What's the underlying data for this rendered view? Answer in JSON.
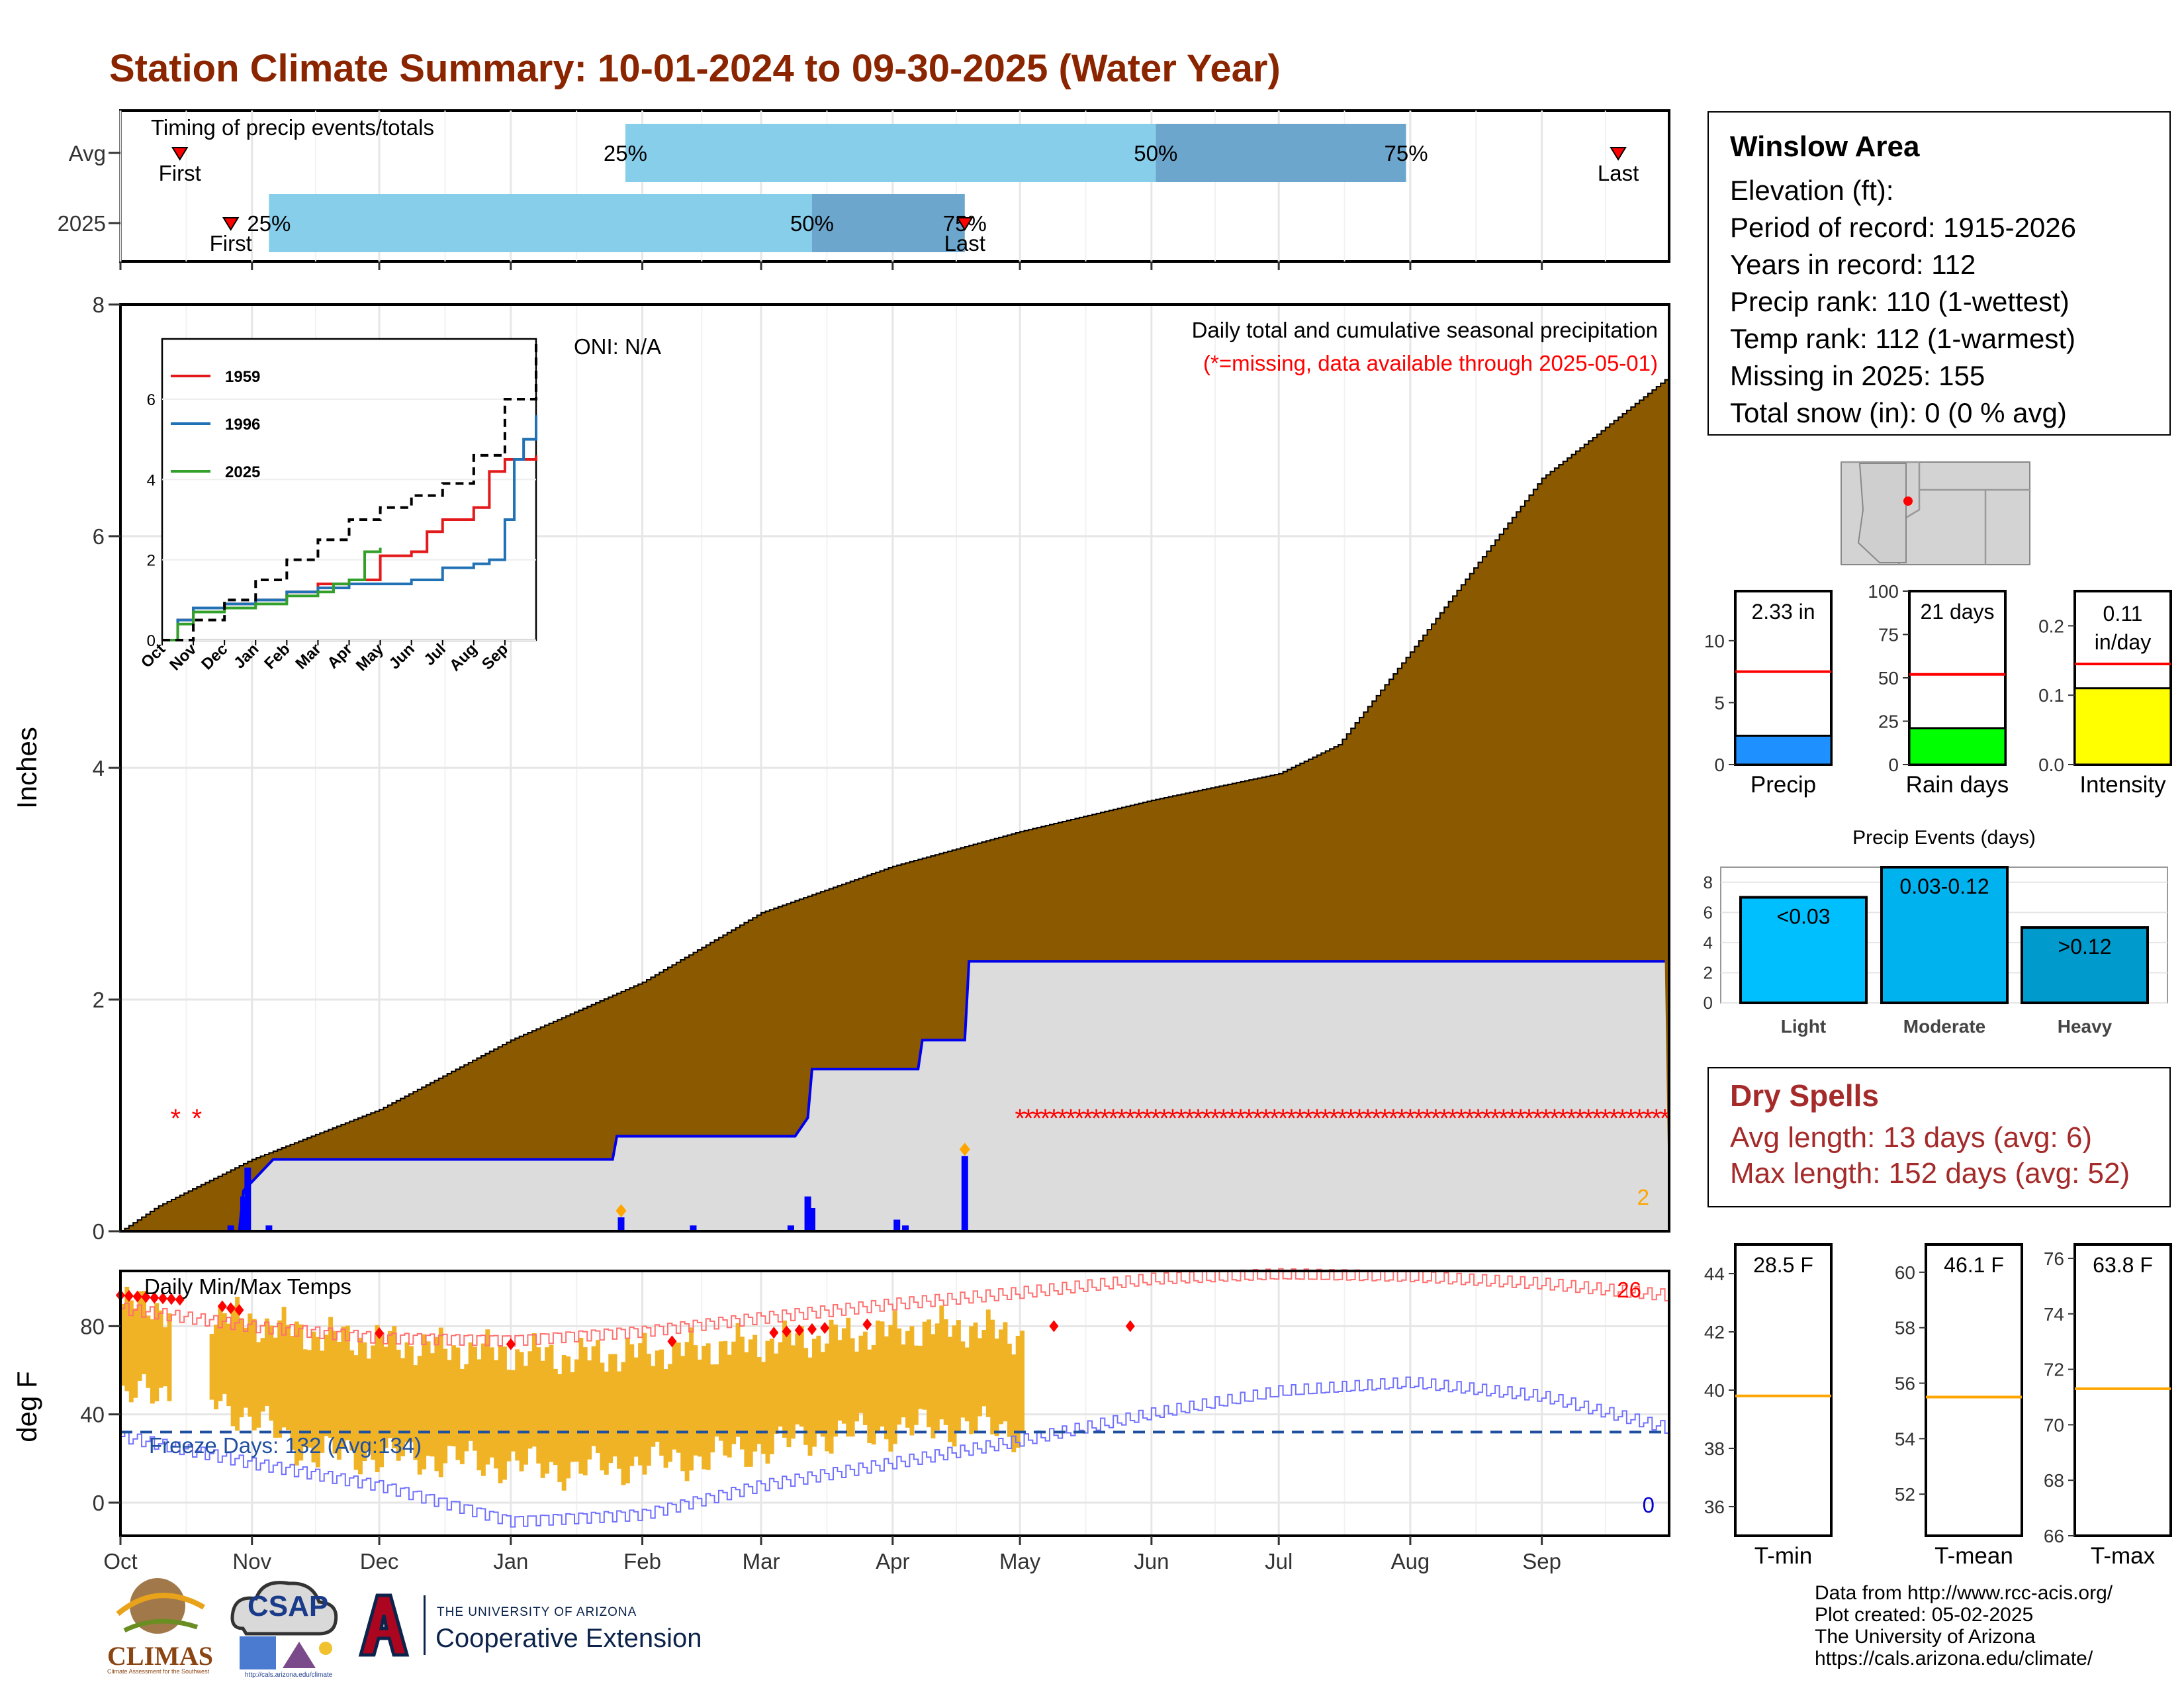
{
  "header": {
    "title": "Station Climate Summary: 10-01-2024 to 09-30-2025 (Water Year)"
  },
  "station": {
    "name": "Winslow Area",
    "elevation": "Elevation (ft):",
    "period": "Period of record: 1915-2026",
    "years": "Years in record: 112",
    "precip_rank": "Precip rank: 110 (1-wettest)",
    "temp_rank": "Temp rank: 112 (1-warmest)",
    "missing": "Missing in 2025: 155",
    "snow": "Total snow (in): 0 (0 % avg)"
  },
  "dry_spells": {
    "title": "Dry Spells",
    "avg": "Avg length: 13 days (avg: 6)",
    "max": "Max length: 152 days (avg: 52)"
  },
  "credits": {
    "line1": "Data from http://www.rcc-acis.org/",
    "line2": "Plot created: 05-02-2025",
    "line3": "The University of Arizona",
    "line4": "https://cals.arizona.edu/climate/"
  },
  "logos": {
    "climas": "CLIMAS",
    "climas_sub": "Climate Assessment for the Southwest",
    "csap": "CSAP",
    "csap_url": "http://cals.arizona.edu/climate",
    "ua_small": "THE UNIVERSITY OF ARIZONA",
    "ua_big": "Cooperative Extension"
  },
  "colors": {
    "title": "#8b2500",
    "cum_fill": "#8b5a00",
    "avg_fill": "#dcdcdc",
    "avg_line": "#0000ee",
    "timing_light": "#87ceeb",
    "timing_dark": "#6ca6cd",
    "temp_bar": "#f0b326",
    "tmax_norm": "#ff7070",
    "tmin_norm": "#7070ff",
    "freeze": "#1f4f9f",
    "missing": "#ff0000"
  },
  "chart_data": [
    {
      "id": "timing",
      "type": "bar",
      "title": "Timing of precip events/totals",
      "rows": [
        {
          "label": "Avg",
          "first": "Oct 15",
          "p25": "Jan 28",
          "p50": "Jun 2",
          "p75": "Jul 31",
          "last": "Sep 19",
          "first_label": "First",
          "last_label": "Last",
          "pct_labels": [
            "25%",
            "50%",
            "75%"
          ]
        },
        {
          "label": "2025",
          "first": "Oct 27",
          "p25": "Nov 5",
          "p50": "Mar 13",
          "p75": "Apr 18",
          "last": "Apr 18",
          "first_label": "First",
          "last_label": "Last",
          "pct_labels": [
            "25%",
            "50%",
            "75%"
          ]
        }
      ]
    },
    {
      "id": "precip",
      "type": "area",
      "title": "Daily total and cumulative seasonal precipitation",
      "subtitle": "(*=missing, data available through 2025-05-01)",
      "annotation": "ONI: N/A",
      "corner_value": "2",
      "ylabel": "Inches",
      "ylim": [
        0,
        8
      ],
      "yticks": [
        "0",
        "2",
        "4",
        "6",
        "8"
      ],
      "avg_cumulative": {
        "x": [
          "Oct 1",
          "Oct 10",
          "Nov 1",
          "Dec 1",
          "Jan 1",
          "Feb 1",
          "Mar 1",
          "Apr 1",
          "May 1",
          "Jun 1",
          "Jul 1",
          "Jul 15",
          "Aug 1",
          "Sep 1",
          "Sep 30"
        ],
        "y": [
          0,
          0.22,
          0.62,
          1.05,
          1.65,
          2.15,
          2.75,
          3.15,
          3.45,
          3.72,
          3.95,
          4.2,
          5.0,
          6.5,
          7.35
        ]
      },
      "obs_cumulative": {
        "x": [
          "Oct 1",
          "Oct 29",
          "Oct 30",
          "Nov 6",
          "Jan 25",
          "Jan 26",
          "Mar 9",
          "Mar 12",
          "Mar 13",
          "Apr 7",
          "Apr 8",
          "Apr 18",
          "Apr 19",
          "May 1",
          "Sep 30"
        ],
        "y": [
          0,
          0,
          0.35,
          0.62,
          0.62,
          0.82,
          0.82,
          0.98,
          1.4,
          1.4,
          1.65,
          1.65,
          2.33,
          2.33,
          2.33
        ]
      },
      "daily": {
        "x": [
          "Oct 27",
          "Oct 30",
          "Oct 31",
          "Nov 5",
          "Jan 27",
          "Feb 13",
          "Mar 8",
          "Mar 12",
          "Mar 13",
          "Apr 2",
          "Apr 4",
          "Apr 18"
        ],
        "y": [
          0.05,
          0.3,
          0.55,
          0.05,
          0.12,
          0.05,
          0.05,
          0.3,
          0.2,
          0.1,
          0.05,
          0.65
        ]
      },
      "flagged_days": [
        "Jan 27",
        "Apr 18"
      ],
      "missing_days": [
        "Oct 14",
        "Oct 19",
        "May 1 to Sep 30"
      ],
      "inset": {
        "type": "line",
        "yticks": [
          "0",
          "2",
          "4",
          "6"
        ],
        "months": [
          "Oct",
          "Nov",
          "Dec",
          "Jan",
          "Feb",
          "Mar",
          "Apr",
          "May",
          "Jun",
          "Jul",
          "Aug",
          "Sep"
        ],
        "series": [
          {
            "name": "1959",
            "color": "#e31a1c",
            "x": [
              0,
              0.5,
              1,
              2,
              3,
              4,
              5,
              6,
              6.5,
              7,
              8,
              8.5,
              9,
              9.5,
              10,
              10.5,
              11,
              11.5,
              12
            ],
            "y": [
              0,
              0.5,
              0.8,
              0.9,
              1.0,
              1.2,
              1.4,
              1.5,
              1.5,
              2.1,
              2.2,
              2.7,
              3.0,
              3.0,
              3.3,
              4.2,
              4.5,
              4.5,
              4.6
            ]
          },
          {
            "name": "1996",
            "color": "#2171b5",
            "x": [
              0,
              0.5,
              1,
              2,
              3,
              4,
              5,
              6,
              7,
              8,
              9,
              10,
              10.5,
              11,
              11.3,
              11.6,
              12
            ],
            "y": [
              0,
              0.5,
              0.8,
              0.9,
              1.0,
              1.2,
              1.3,
              1.4,
              1.4,
              1.5,
              1.8,
              1.9,
              2.0,
              3.0,
              4.5,
              5.0,
              5.6
            ]
          },
          {
            "name": "2025",
            "color": "#33a02c",
            "x": [
              0,
              0.5,
              1,
              2,
              3,
              4,
              5,
              5.5,
              6,
              6.5,
              7
            ],
            "y": [
              0,
              0.4,
              0.7,
              0.8,
              0.9,
              1.1,
              1.2,
              1.4,
              1.5,
              2.2,
              2.3
            ]
          },
          {
            "name": "",
            "color": "#000000",
            "dashed": true,
            "x": [
              0,
              1,
              2,
              3,
              4,
              5,
              6,
              7,
              8,
              9,
              10,
              11,
              12
            ],
            "y": [
              0,
              0.5,
              1.0,
              1.5,
              2.0,
              2.5,
              3.0,
              3.3,
              3.6,
              3.9,
              4.6,
              6.0,
              7.4
            ]
          }
        ]
      }
    },
    {
      "id": "temps",
      "type": "bar",
      "title": "Daily Min/Max Temps",
      "ylabel": "deg F",
      "ylim": [
        -15,
        105
      ],
      "yticks": [
        "0",
        "40",
        "80"
      ],
      "freeze_label": "Freeze Days: 132 (Avg:134)",
      "freeze_line": 32,
      "top_count": "26",
      "bottom_count": "0",
      "months": [
        "Oct",
        "Nov",
        "Dec",
        "Jan",
        "Feb",
        "Mar",
        "Apr",
        "May",
        "Jun",
        "Jul",
        "Aug",
        "Sep"
      ],
      "normal_max": {
        "x": [
          "Oct 1",
          "Nov 1",
          "Dec 1",
          "Jan 1",
          "Feb 1",
          "Mar 1",
          "Apr 1",
          "May 1",
          "Jun 1",
          "Jul 1",
          "Aug 1",
          "Sep 1",
          "Sep 30"
        ],
        "y": [
          88,
          80,
          75,
          74,
          78,
          84,
          90,
          95,
          101,
          103,
          102,
          99,
          94
        ]
      },
      "normal_min": {
        "x": [
          "Oct 1",
          "Nov 1",
          "Dec 1",
          "Jan 1",
          "Feb 1",
          "Mar 1",
          "Apr 1",
          "May 1",
          "Jun 1",
          "Jul 1",
          "Aug 1",
          "Sep 1",
          "Sep 30"
        ],
        "y": [
          30,
          18,
          8,
          -8,
          -5,
          8,
          18,
          28,
          40,
          50,
          54,
          48,
          34
        ]
      },
      "observed_max": {
        "x": [
          "Oct 1",
          "Oct 15",
          "Oct 25",
          "Nov 15",
          "Dec 15",
          "Jan 15",
          "Feb 15",
          "Mar 15",
          "Apr 15",
          "May 1"
        ],
        "y": [
          90,
          88,
          85,
          76,
          70,
          66,
          70,
          75,
          80,
          76
        ]
      },
      "observed_min": {
        "x": [
          "Oct 1",
          "Oct 15",
          "Oct 25",
          "Nov 15",
          "Dec 15",
          "Jan 15",
          "Feb 15",
          "Mar 15",
          "Apr 15",
          "May 1"
        ],
        "y": [
          47,
          52,
          45,
          22,
          20,
          15,
          20,
          30,
          35,
          32
        ]
      }
    },
    {
      "id": "precip-gauges",
      "type": "bar",
      "bars": [
        {
          "name": "Precip",
          "value_label": "2.33 in",
          "value": 2.33,
          "avg": 7.5,
          "ylim": [
            0,
            14
          ],
          "yticks": [
            "0",
            "5",
            "10"
          ],
          "color": "#1e90ff"
        },
        {
          "name": "Rain days",
          "value_label": "21 days",
          "value": 21,
          "avg": 52,
          "ylim": [
            0,
            100
          ],
          "yticks": [
            "0",
            "25",
            "50",
            "75",
            "100"
          ],
          "color": "#00ff00"
        },
        {
          "name": "Intensity",
          "value_label": "0.11 in/day",
          "value": 0.11,
          "avg": 0.145,
          "ylim": [
            0,
            0.25
          ],
          "yticks": [
            "0.0",
            "0.1",
            "0.2"
          ],
          "color": "#ffff00"
        }
      ]
    },
    {
      "id": "events",
      "type": "bar",
      "title": "Precip Events (days)",
      "categories": [
        "Light",
        "Moderate",
        "Heavy"
      ],
      "bar_labels": [
        "<0.03",
        "0.03-0.12",
        ">0.12"
      ],
      "values": [
        7,
        9,
        5
      ],
      "colors": [
        "#00bfff",
        "#00b2ee",
        "#009acd"
      ],
      "ylim": [
        0,
        9
      ],
      "yticks": [
        "0",
        "2",
        "4",
        "6",
        "8"
      ]
    },
    {
      "id": "temp-gauges",
      "type": "bar",
      "bars": [
        {
          "name": "T-min",
          "value_label": "28.5 F",
          "value": 28.5,
          "avg": 39.8,
          "ylim": [
            35,
            45
          ],
          "yticks": [
            "36",
            "38",
            "40",
            "42",
            "44"
          ]
        },
        {
          "name": "T-mean",
          "value_label": "46.1 F",
          "value": 46.1,
          "avg": 55.5,
          "ylim": [
            50.5,
            61
          ],
          "yticks": [
            "52",
            "54",
            "56",
            "58",
            "60"
          ]
        },
        {
          "name": "T-max",
          "value_label": "63.8 F",
          "value": 63.8,
          "avg": 71.3,
          "ylim": [
            66,
            76.5
          ],
          "yticks": [
            "66",
            "68",
            "70",
            "72",
            "74",
            "76"
          ]
        }
      ]
    }
  ]
}
